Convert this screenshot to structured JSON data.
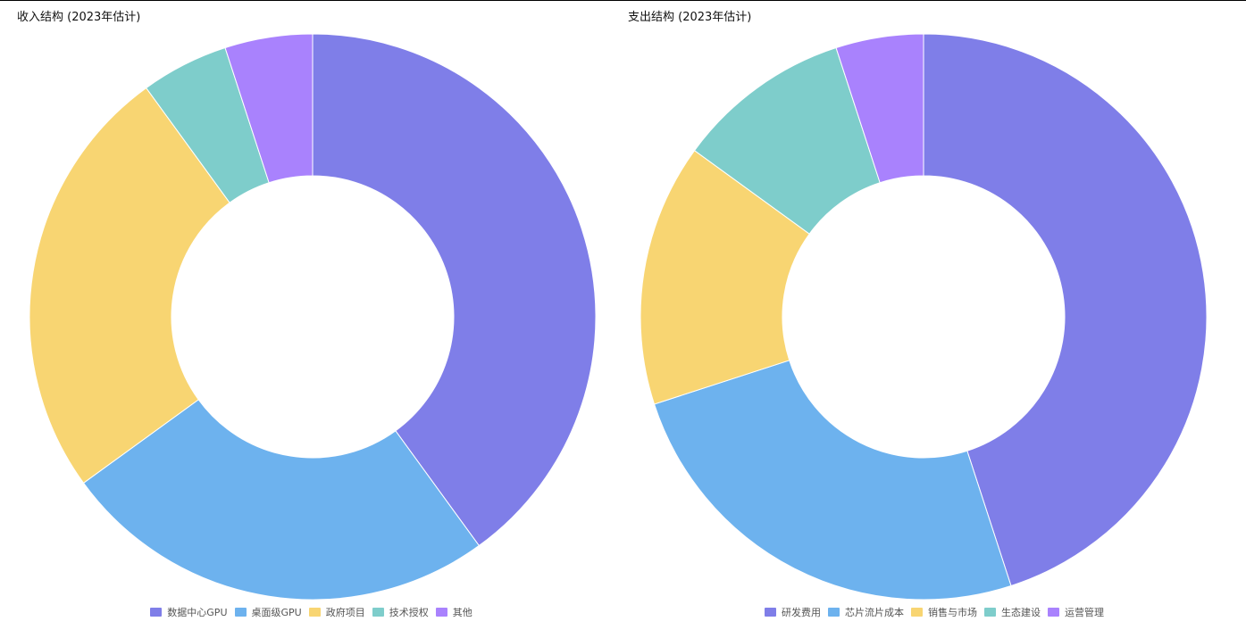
{
  "chart_data": [
    {
      "type": "pie",
      "subtype": "donut",
      "title": "收入结构 (2023年估计)",
      "categories": [
        "数据中心GPU",
        "桌面级GPU",
        "政府项目",
        "技术授权",
        "其他"
      ],
      "values": [
        40,
        25,
        25,
        5,
        5
      ],
      "colors": [
        "#7f7ee8",
        "#6db2ee",
        "#f8d572",
        "#7ecdcb",
        "#a982fd"
      ],
      "legend_position": "bottom"
    },
    {
      "type": "pie",
      "subtype": "donut",
      "title": "支出结构 (2023年估计)",
      "categories": [
        "研发费用",
        "芯片流片成本",
        "销售与市场",
        "生态建设",
        "运营管理"
      ],
      "values": [
        45,
        25,
        15,
        10,
        5
      ],
      "colors": [
        "#7f7ee8",
        "#6db2ee",
        "#f8d572",
        "#7ecdcb",
        "#a982fd"
      ],
      "legend_position": "bottom"
    }
  ]
}
